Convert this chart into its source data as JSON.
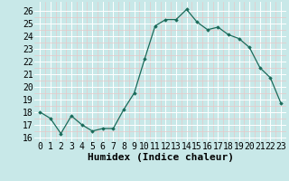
{
  "x": [
    0,
    1,
    2,
    3,
    4,
    5,
    6,
    7,
    8,
    9,
    10,
    11,
    12,
    13,
    14,
    15,
    16,
    17,
    18,
    19,
    20,
    21,
    22,
    23
  ],
  "y": [
    18.0,
    17.5,
    16.3,
    17.7,
    17.0,
    16.5,
    16.7,
    16.7,
    18.2,
    19.5,
    22.2,
    24.8,
    25.3,
    25.3,
    26.1,
    25.1,
    24.5,
    24.7,
    24.1,
    23.8,
    23.1,
    21.5,
    20.7,
    18.7
  ],
  "xlabel": "Humidex (Indice chaleur)",
  "ylim": [
    15.7,
    26.7
  ],
  "xlim": [
    -0.5,
    23.5
  ],
  "yticks": [
    16,
    17,
    18,
    19,
    20,
    21,
    22,
    23,
    24,
    25,
    26
  ],
  "xticks": [
    0,
    1,
    2,
    3,
    4,
    5,
    6,
    7,
    8,
    9,
    10,
    11,
    12,
    13,
    14,
    15,
    16,
    17,
    18,
    19,
    20,
    21,
    22,
    23
  ],
  "line_color": "#1a6b5a",
  "marker_color": "#1a6b5a",
  "bg_color": "#c8e8e8",
  "grid_color": "#ffffff",
  "grid_minor_color": "#e8c8c8",
  "xlabel_fontsize": 8,
  "tick_fontsize": 7
}
